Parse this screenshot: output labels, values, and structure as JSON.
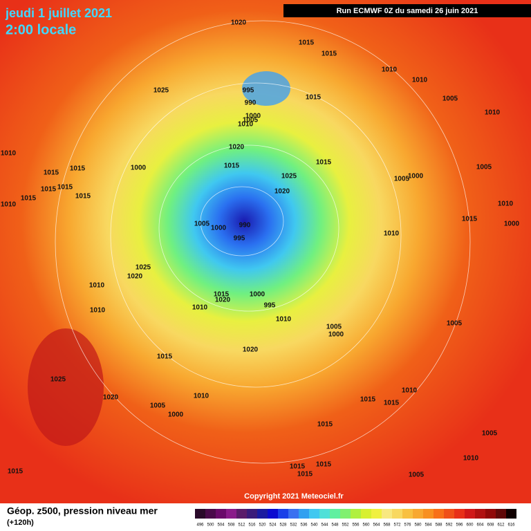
{
  "header": {
    "date": "jeudi 1 juillet 2021",
    "time": "2:00 locale",
    "run": "Run ECMWF 0Z du samedi 26 juin 2021"
  },
  "copyright": "Copyright 2021 Meteociel.fr",
  "legend": {
    "title": "Géop. z500, pression niveau mer",
    "range": "(+120h)",
    "values": [
      496,
      500,
      504,
      508,
      512,
      516,
      520,
      524,
      528,
      532,
      536,
      540,
      544,
      548,
      552,
      556,
      560,
      564,
      568,
      572,
      576,
      580,
      584,
      588,
      592,
      596,
      600,
      604,
      608,
      612,
      616
    ],
    "colors": [
      "#2a0a2a",
      "#4a0a4a",
      "#6a0a6a",
      "#8a1a8a",
      "#5a1a6a",
      "#3a1a7a",
      "#1a1aa0",
      "#0a0ad0",
      "#1a40e8",
      "#3a70f0",
      "#30a0f0",
      "#40c8f0",
      "#50e0d8",
      "#60f0a0",
      "#80f070",
      "#b0f040",
      "#d8f030",
      "#f0f040",
      "#f8e880",
      "#f8d860",
      "#f8c040",
      "#f8a830",
      "#f89020",
      "#f87018",
      "#f05018",
      "#e83018",
      "#d01818",
      "#b01010",
      "#900808",
      "#600808",
      "#100000"
    ]
  },
  "isobars": [
    1020,
    1015,
    1015,
    1010,
    1010,
    1025,
    995,
    990,
    1015,
    1005,
    1000,
    1005,
    1010,
    1010,
    1010,
    1000,
    1015,
    1015,
    1020,
    1015,
    1015,
    1025,
    1005,
    1005,
    1000,
    1015,
    1015,
    1020,
    1015,
    1015,
    1010,
    1010,
    1005,
    1000,
    990,
    1000,
    995,
    1010,
    1015,
    1025,
    1020,
    1010,
    1010,
    1015,
    1020,
    1000,
    995,
    1010,
    1010,
    1005,
    1000,
    1020,
    1015,
    1025,
    1020,
    1005,
    1000,
    1010,
    1015,
    1015,
    1010,
    1015,
    1005,
    1010,
    1015,
    1015,
    1015,
    1015,
    1005,
    1005
  ]
}
